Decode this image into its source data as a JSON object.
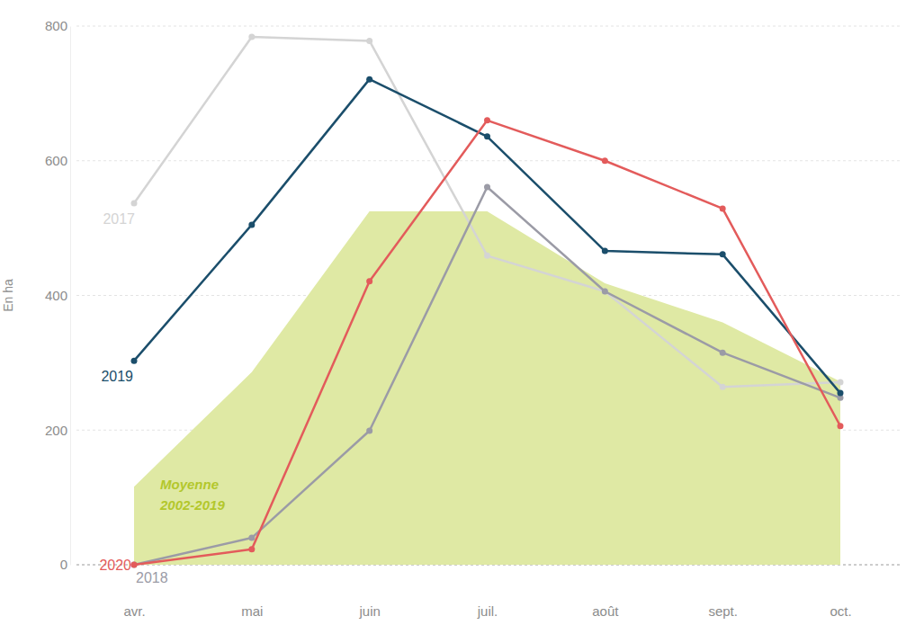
{
  "chart_data": {
    "type": "line",
    "y_label": "En ha",
    "categories": [
      "avr.",
      "mai",
      "juin",
      "juil.",
      "août",
      "sept.",
      "oct."
    ],
    "series": [
      {
        "name": "Moyenne 2002-2019",
        "type": "area",
        "color": "#dfe9a4",
        "values": [
          116,
          286,
          525,
          525,
          418,
          360,
          272
        ]
      },
      {
        "name": "2017",
        "color": "#d4d4d4",
        "values": [
          537,
          784,
          778,
          459,
          406,
          264,
          271
        ]
      },
      {
        "name": "2018",
        "color": "#9b9ba6",
        "values": [
          0,
          40,
          199,
          561,
          406,
          315,
          248
        ]
      },
      {
        "name": "2019",
        "color": "#1b4e6b",
        "values": [
          303,
          505,
          721,
          636,
          466,
          461,
          255
        ]
      },
      {
        "name": "2020",
        "color": "#e35b5b",
        "values": [
          0,
          23,
          421,
          660,
          600,
          529,
          206
        ]
      }
    ],
    "marker": "circle",
    "ylim": [
      0,
      800
    ],
    "yticks": [
      0,
      200,
      400,
      600,
      800
    ],
    "grid": true
  }
}
